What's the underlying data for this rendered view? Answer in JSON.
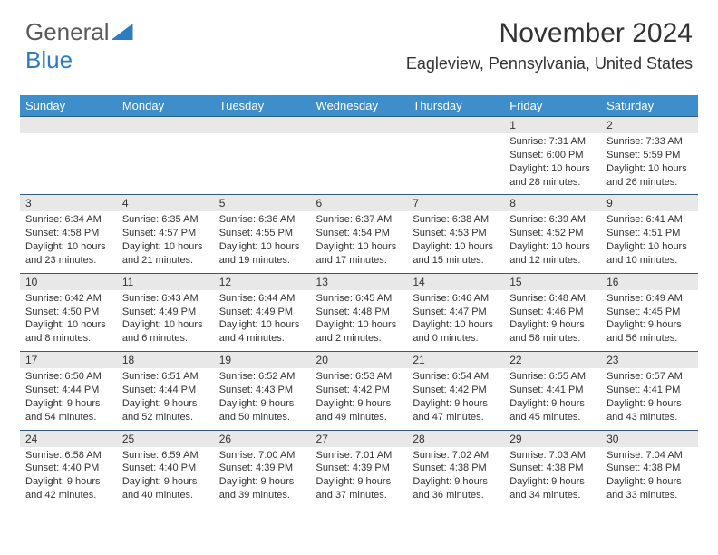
{
  "brand": {
    "part1": "General",
    "part2": "Blue"
  },
  "title": "November 2024",
  "location": "Eagleview, Pennsylvania, United States",
  "colors": {
    "header_bg": "#3d8ecb",
    "header_text": "#ffffff",
    "daynum_bg": "#e8e8e8",
    "row_divider": "#2d5c8a",
    "body_text": "#333333",
    "brand_gray": "#5a5a5a",
    "brand_blue": "#2d7cc3"
  },
  "weekdays": [
    "Sunday",
    "Monday",
    "Tuesday",
    "Wednesday",
    "Thursday",
    "Friday",
    "Saturday"
  ],
  "weeks": [
    [
      null,
      null,
      null,
      null,
      null,
      {
        "n": "1",
        "sr": "7:31 AM",
        "ss": "6:00 PM",
        "dl": "10 hours and 28 minutes."
      },
      {
        "n": "2",
        "sr": "7:33 AM",
        "ss": "5:59 PM",
        "dl": "10 hours and 26 minutes."
      }
    ],
    [
      {
        "n": "3",
        "sr": "6:34 AM",
        "ss": "4:58 PM",
        "dl": "10 hours and 23 minutes."
      },
      {
        "n": "4",
        "sr": "6:35 AM",
        "ss": "4:57 PM",
        "dl": "10 hours and 21 minutes."
      },
      {
        "n": "5",
        "sr": "6:36 AM",
        "ss": "4:55 PM",
        "dl": "10 hours and 19 minutes."
      },
      {
        "n": "6",
        "sr": "6:37 AM",
        "ss": "4:54 PM",
        "dl": "10 hours and 17 minutes."
      },
      {
        "n": "7",
        "sr": "6:38 AM",
        "ss": "4:53 PM",
        "dl": "10 hours and 15 minutes."
      },
      {
        "n": "8",
        "sr": "6:39 AM",
        "ss": "4:52 PM",
        "dl": "10 hours and 12 minutes."
      },
      {
        "n": "9",
        "sr": "6:41 AM",
        "ss": "4:51 PM",
        "dl": "10 hours and 10 minutes."
      }
    ],
    [
      {
        "n": "10",
        "sr": "6:42 AM",
        "ss": "4:50 PM",
        "dl": "10 hours and 8 minutes."
      },
      {
        "n": "11",
        "sr": "6:43 AM",
        "ss": "4:49 PM",
        "dl": "10 hours and 6 minutes."
      },
      {
        "n": "12",
        "sr": "6:44 AM",
        "ss": "4:49 PM",
        "dl": "10 hours and 4 minutes."
      },
      {
        "n": "13",
        "sr": "6:45 AM",
        "ss": "4:48 PM",
        "dl": "10 hours and 2 minutes."
      },
      {
        "n": "14",
        "sr": "6:46 AM",
        "ss": "4:47 PM",
        "dl": "10 hours and 0 minutes."
      },
      {
        "n": "15",
        "sr": "6:48 AM",
        "ss": "4:46 PM",
        "dl": "9 hours and 58 minutes."
      },
      {
        "n": "16",
        "sr": "6:49 AM",
        "ss": "4:45 PM",
        "dl": "9 hours and 56 minutes."
      }
    ],
    [
      {
        "n": "17",
        "sr": "6:50 AM",
        "ss": "4:44 PM",
        "dl": "9 hours and 54 minutes."
      },
      {
        "n": "18",
        "sr": "6:51 AM",
        "ss": "4:44 PM",
        "dl": "9 hours and 52 minutes."
      },
      {
        "n": "19",
        "sr": "6:52 AM",
        "ss": "4:43 PM",
        "dl": "9 hours and 50 minutes."
      },
      {
        "n": "20",
        "sr": "6:53 AM",
        "ss": "4:42 PM",
        "dl": "9 hours and 49 minutes."
      },
      {
        "n": "21",
        "sr": "6:54 AM",
        "ss": "4:42 PM",
        "dl": "9 hours and 47 minutes."
      },
      {
        "n": "22",
        "sr": "6:55 AM",
        "ss": "4:41 PM",
        "dl": "9 hours and 45 minutes."
      },
      {
        "n": "23",
        "sr": "6:57 AM",
        "ss": "4:41 PM",
        "dl": "9 hours and 43 minutes."
      }
    ],
    [
      {
        "n": "24",
        "sr": "6:58 AM",
        "ss": "4:40 PM",
        "dl": "9 hours and 42 minutes."
      },
      {
        "n": "25",
        "sr": "6:59 AM",
        "ss": "4:40 PM",
        "dl": "9 hours and 40 minutes."
      },
      {
        "n": "26",
        "sr": "7:00 AM",
        "ss": "4:39 PM",
        "dl": "9 hours and 39 minutes."
      },
      {
        "n": "27",
        "sr": "7:01 AM",
        "ss": "4:39 PM",
        "dl": "9 hours and 37 minutes."
      },
      {
        "n": "28",
        "sr": "7:02 AM",
        "ss": "4:38 PM",
        "dl": "9 hours and 36 minutes."
      },
      {
        "n": "29",
        "sr": "7:03 AM",
        "ss": "4:38 PM",
        "dl": "9 hours and 34 minutes."
      },
      {
        "n": "30",
        "sr": "7:04 AM",
        "ss": "4:38 PM",
        "dl": "9 hours and 33 minutes."
      }
    ]
  ],
  "labels": {
    "sunrise": "Sunrise:",
    "sunset": "Sunset:",
    "daylight": "Daylight:"
  }
}
